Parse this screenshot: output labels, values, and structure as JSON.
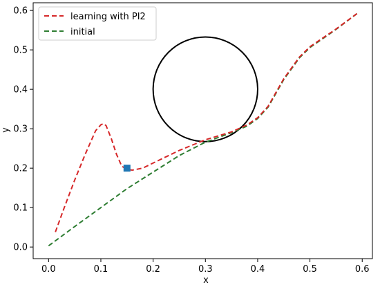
{
  "chart_data": {
    "type": "line",
    "title": "",
    "xlabel": "x",
    "ylabel": "y",
    "xlim": [
      -0.0295,
      0.6195
    ],
    "ylim": [
      -0.0295,
      0.6195
    ],
    "xticks": [
      0.0,
      0.1,
      0.2,
      0.3,
      0.4,
      0.5,
      0.6
    ],
    "yticks": [
      0.0,
      0.1,
      0.2,
      0.3,
      0.4,
      0.5,
      0.6
    ],
    "tick_labels_x": [
      "0.0",
      "0.1",
      "0.2",
      "0.3",
      "0.4",
      "0.5",
      "0.6"
    ],
    "tick_labels_y": [
      "0.0",
      "0.1",
      "0.2",
      "0.3",
      "0.4",
      "0.5",
      "0.6"
    ],
    "grid": false,
    "legend_position": "top-left",
    "series": [
      {
        "name": "learning with PI2",
        "color": "#d62728",
        "style": "dashed",
        "x": [
          0.013,
          0.03,
          0.05,
          0.07,
          0.09,
          0.1,
          0.105,
          0.11,
          0.12,
          0.13,
          0.14,
          0.15,
          0.16,
          0.18,
          0.2,
          0.25,
          0.3,
          0.35,
          0.38,
          0.4,
          0.42,
          0.45,
          0.48,
          0.5,
          0.55,
          0.59
        ],
        "y": [
          0.038,
          0.1,
          0.17,
          0.235,
          0.295,
          0.31,
          0.313,
          0.308,
          0.275,
          0.235,
          0.205,
          0.197,
          0.195,
          0.2,
          0.213,
          0.245,
          0.272,
          0.292,
          0.31,
          0.328,
          0.357,
          0.427,
          0.482,
          0.508,
          0.553,
          0.592
        ]
      },
      {
        "name": "initial",
        "color": "#2e7d32",
        "style": "dashed",
        "x": [
          0.0,
          0.05,
          0.1,
          0.15,
          0.2,
          0.25,
          0.3,
          0.35,
          0.38,
          0.4,
          0.42,
          0.45,
          0.48,
          0.5,
          0.55,
          0.59
        ],
        "y": [
          0.003,
          0.052,
          0.1,
          0.148,
          0.19,
          0.232,
          0.266,
          0.29,
          0.307,
          0.326,
          0.355,
          0.425,
          0.48,
          0.506,
          0.552,
          0.592
        ]
      }
    ],
    "obstacle": {
      "shape": "circle",
      "center": [
        0.3,
        0.4
      ],
      "radius": 0.1,
      "color": "#000000"
    },
    "marker": {
      "x": 0.15,
      "y": 0.2,
      "shape": "square",
      "color": "#1f77b4"
    }
  }
}
